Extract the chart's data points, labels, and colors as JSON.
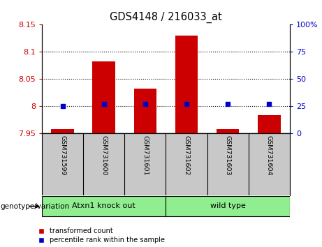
{
  "title": "GDS4148 / 216033_at",
  "samples": [
    "GSM731599",
    "GSM731600",
    "GSM731601",
    "GSM731602",
    "GSM731603",
    "GSM731604"
  ],
  "red_values": [
    7.958,
    8.082,
    8.032,
    8.13,
    7.958,
    7.984
  ],
  "blue_values_pct": [
    25,
    27,
    27,
    27,
    27,
    27
  ],
  "ylim_left": [
    7.95,
    8.15
  ],
  "ylim_right": [
    0,
    100
  ],
  "yticks_left": [
    7.95,
    8.0,
    8.05,
    8.1,
    8.15
  ],
  "yticks_right": [
    0,
    25,
    50,
    75,
    100
  ],
  "ytick_labels_left": [
    "7.95",
    "8",
    "8.05",
    "8.1",
    "8.15"
  ],
  "ytick_labels_right": [
    "0",
    "25",
    "50",
    "75",
    "100%"
  ],
  "grid_lines": [
    8.0,
    8.05,
    8.1
  ],
  "group1_label": "Atxn1 knock out",
  "group2_label": "wild type",
  "group1_indices": [
    0,
    1,
    2
  ],
  "group2_indices": [
    3,
    4,
    5
  ],
  "group_color": "#90EE90",
  "bar_color": "#CC0000",
  "dot_color": "#0000CC",
  "bar_base": 7.95,
  "legend_red_label": "transformed count",
  "legend_blue_label": "percentile rank within the sample",
  "genotype_label": "genotype/variation",
  "left_axis_color": "#CC0000",
  "right_axis_color": "#0000CC",
  "tick_bg_color": "#C8C8C8",
  "bar_width": 0.55,
  "dot_size": 25
}
